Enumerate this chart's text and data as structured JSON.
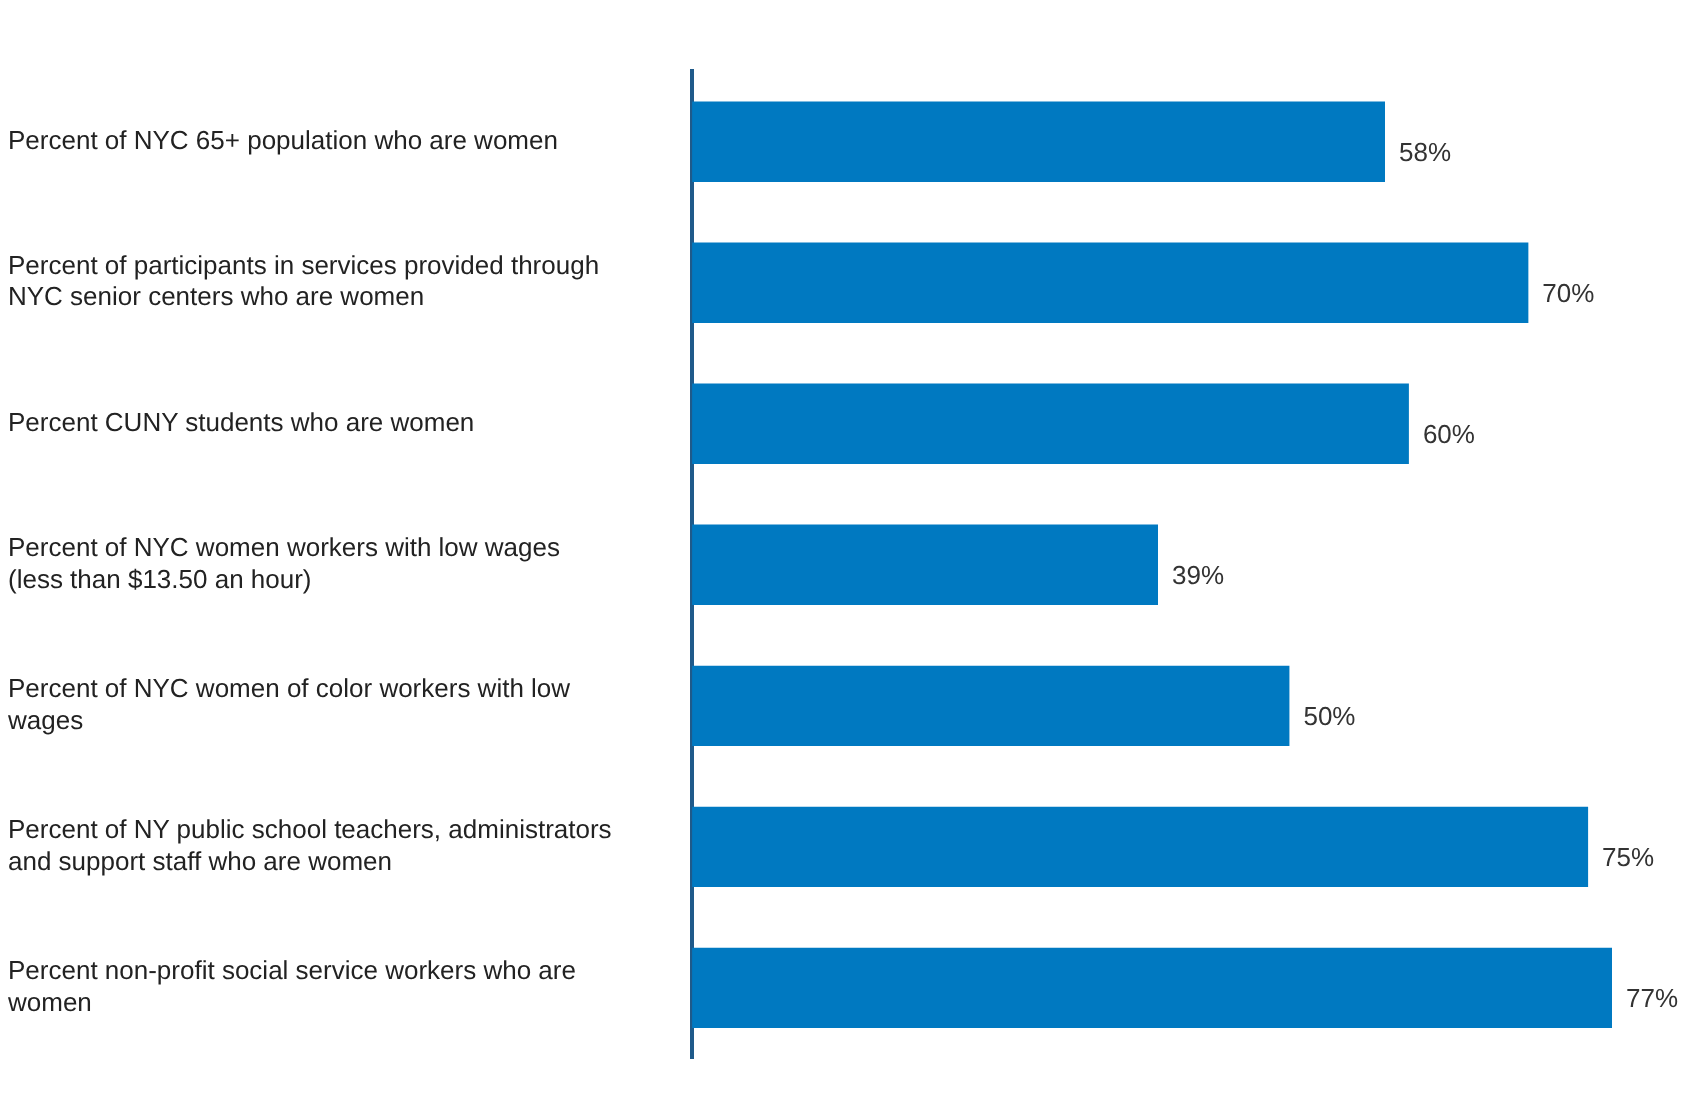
{
  "chart_data": {
    "type": "bar",
    "orientation": "horizontal",
    "tick_labels": "y",
    "value_labels": [
      "58%",
      "70%",
      "60%",
      "39%",
      "50%",
      "75%",
      "77%"
    ],
    "categories": [
      "Percent of NYC 65+ population who are women",
      "Percent of participants in services provided through NYC senior centers who are women",
      "Percent CUNY students who are women",
      "Percent of NYC women workers with low wages (less than $13.50 an hour)",
      "Percent of NYC women of color workers with low wages",
      "Percent of NY public school teachers, administrators and support staff who are women",
      "Percent non-profit social service workers who are women"
    ],
    "values": [
      58,
      70,
      60,
      39,
      50,
      75,
      77
    ],
    "color": "#0079c1"
  }
}
